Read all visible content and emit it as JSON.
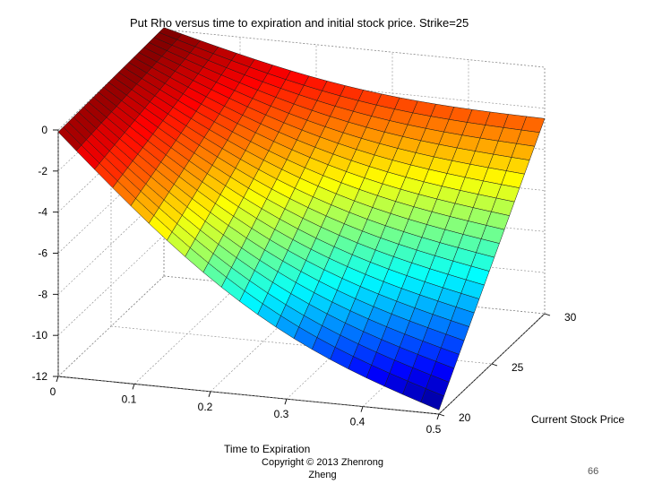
{
  "chart_data": {
    "type": "surface",
    "title": "Put Rho versus time to expiration and initial stock price. Strike=25",
    "xlabel": "Time to Expiration",
    "ylabel": "Current Stock Price",
    "zlabel": "",
    "strike": 25,
    "x_ticks": [
      "0",
      "0.1",
      "0.2",
      "0.3",
      "0.4",
      "0.5"
    ],
    "y_ticks": [
      "20",
      "25",
      "30"
    ],
    "z_ticks": [
      "0",
      "-2",
      "-4",
      "-6",
      "-8",
      "-10",
      "-12"
    ],
    "xlim": [
      0,
      0.5
    ],
    "ylim": [
      20,
      30
    ],
    "zlim": [
      -12,
      0
    ],
    "colormap": "jet",
    "grid": true,
    "surface_corners": [
      {
        "time": 0,
        "price": 20,
        "rho": -0.1
      },
      {
        "time": 0,
        "price": 30,
        "rho": 0.1
      },
      {
        "time": 0.5,
        "price": 30,
        "rho": -2.5
      },
      {
        "time": 0.5,
        "price": 20,
        "rho": -11.8
      }
    ],
    "grid_size": {
      "time_steps": 21,
      "price_steps": 21
    }
  },
  "footer": {
    "copyright_line1": "Copyright © 2013 Zhenrong",
    "copyright_line2": "Zheng",
    "page_number": "66"
  }
}
